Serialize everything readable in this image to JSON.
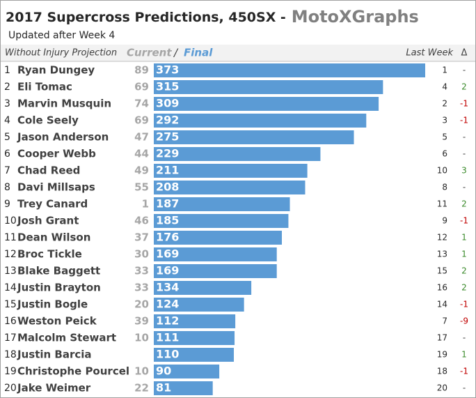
{
  "chart_data": {
    "type": "bar",
    "title": "2017 Supercross Predictions, 450SX",
    "separator": "-",
    "brand": "MotoXGraphs",
    "subtitle": "Updated after Week 4",
    "header": {
      "label": "Without Injury Projection",
      "current": "Current",
      "slash": "/",
      "final": "Final",
      "last_week": "Last Week",
      "delta": "Δ"
    },
    "color": "#5b9bd5",
    "ranks": [
      1,
      2,
      3,
      4,
      5,
      6,
      7,
      8,
      9,
      10,
      11,
      12,
      13,
      14,
      15,
      16,
      17,
      18,
      19,
      20
    ],
    "categories": [
      "Ryan Dungey",
      "Eli Tomac",
      "Marvin Musquin",
      "Cole Seely",
      "Jason Anderson",
      "Cooper Webb",
      "Chad Reed",
      "Davi Millsaps",
      "Trey Canard",
      "Josh Grant",
      "Dean Wilson",
      "Broc Tickle",
      "Blake Baggett",
      "Justin Brayton",
      "Justin Bogle",
      "Weston Peick",
      "Malcolm Stewart",
      "Justin Barcia",
      "Christophe Pourcel",
      "Jake Weimer"
    ],
    "current": [
      89,
      69,
      74,
      69,
      47,
      44,
      49,
      55,
      1,
      46,
      37,
      30,
      33,
      33,
      20,
      39,
      10,
      null,
      10,
      22
    ],
    "values": [
      373,
      315,
      309,
      292,
      275,
      229,
      211,
      208,
      187,
      185,
      176,
      169,
      169,
      134,
      124,
      112,
      111,
      110,
      90,
      81
    ],
    "last_week": [
      1,
      4,
      2,
      3,
      5,
      6,
      10,
      8,
      11,
      9,
      12,
      13,
      15,
      16,
      14,
      7,
      17,
      19,
      18,
      20
    ],
    "delta": {
      "values": [
        0,
        2,
        -1,
        -1,
        0,
        0,
        3,
        0,
        2,
        -1,
        1,
        1,
        2,
        2,
        -1,
        -9,
        0,
        1,
        -1,
        0
      ],
      "value_labels": [
        "-",
        "2",
        "-1",
        "-1",
        "-",
        "-",
        "3",
        "-",
        "2",
        "-1",
        "1",
        "1",
        "2",
        "2",
        "-1",
        "-9",
        "-",
        "1",
        "-1",
        "-"
      ]
    }
  }
}
